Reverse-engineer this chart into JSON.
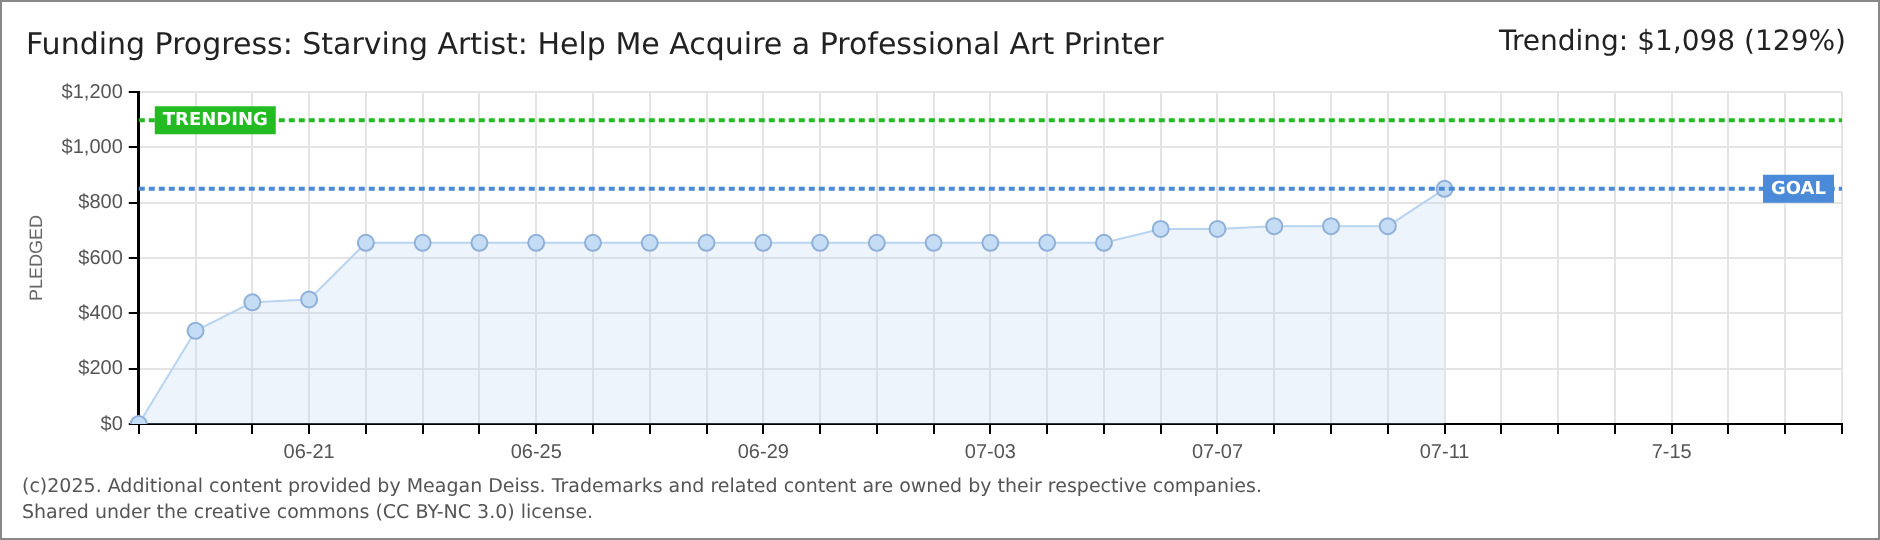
{
  "chart_data": {
    "type": "area",
    "title": "Funding Progress: Starving Artist: Help Me Acquire a Professional Art Printer",
    "subtitle": "Trending:  $1,098 (129%)",
    "ylabel": "PLEDGED",
    "categories": [
      null,
      null,
      null,
      "06-21",
      null,
      null,
      null,
      "06-25",
      null,
      null,
      null,
      "06-29",
      null,
      null,
      null,
      "07-03",
      null,
      null,
      null,
      "07-07",
      null,
      null,
      null,
      "07-11",
      null,
      null,
      null,
      "7-15",
      null,
      null,
      null
    ],
    "series": [
      {
        "color": "#b8d4f0",
        "values": [
          0,
          337,
          440,
          450,
          655,
          655,
          655,
          655,
          655,
          655,
          655,
          655,
          655,
          655,
          655,
          655,
          655,
          655,
          705,
          705,
          715,
          715,
          715,
          850,
          null,
          null,
          null,
          null,
          null,
          null,
          null
        ]
      }
    ],
    "ylim": [
      0,
      1200
    ],
    "yticks": [
      {
        "value": 0,
        "label": "$0"
      },
      {
        "value": 200,
        "label": "$200"
      },
      {
        "value": 400,
        "label": "$400"
      },
      {
        "value": 600,
        "label": "$600"
      },
      {
        "value": 800,
        "label": "$800"
      },
      {
        "value": 1000,
        "label": "$1,000"
      },
      {
        "value": 1200,
        "label": "$1,200"
      }
    ],
    "ref_lines": [
      {
        "axis": "y",
        "value": 1098,
        "label": "TRENDING",
        "color": "#22bb22",
        "line_style": "dotted"
      },
      {
        "axis": "y",
        "value": 850,
        "label": "GOAL",
        "color": "#4a8ad8",
        "line_style": "dotted"
      }
    ],
    "grid": true,
    "marker": "circle",
    "legend": false,
    "annotations": [
      "(c)2025. Additional content provided by Meagan Deiss. Trademarks and related content are owned by their respective companies.",
      "Shared under the creative commons (CC BY-NC 3.0) license."
    ]
  }
}
